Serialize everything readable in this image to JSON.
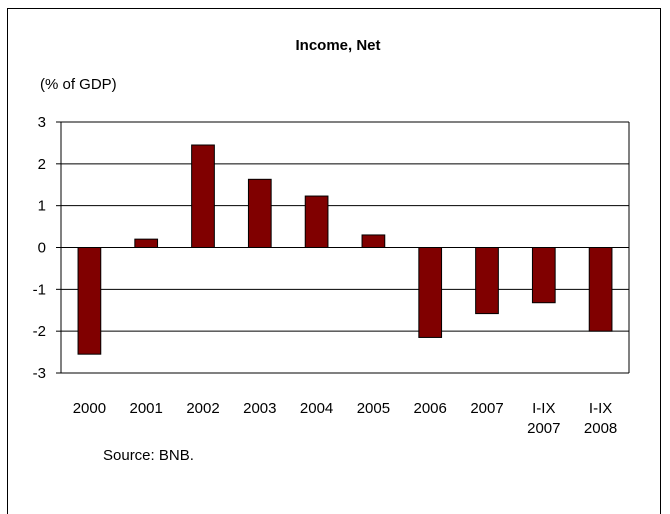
{
  "chart_data": {
    "type": "bar",
    "title": "Income, Net",
    "ylabel": "(% of GDP)",
    "source": "Source: BNB.",
    "categories": [
      [
        "2000"
      ],
      [
        "2001"
      ],
      [
        "2002"
      ],
      [
        "2003"
      ],
      [
        "2004"
      ],
      [
        "2005"
      ],
      [
        "2006"
      ],
      [
        "2007"
      ],
      [
        "I-IX",
        "2007"
      ],
      [
        "I-IX",
        "2008"
      ]
    ],
    "values": [
      -2.55,
      0.2,
      2.45,
      1.63,
      1.23,
      0.3,
      -2.15,
      -1.58,
      -1.32,
      -2.0
    ],
    "ylim": [
      -3,
      3
    ],
    "yticks": [
      "3",
      "2",
      "1",
      "0",
      "-1",
      "-2",
      "-3"
    ],
    "grid": true,
    "legend": "none",
    "bar_color": "#800000"
  }
}
